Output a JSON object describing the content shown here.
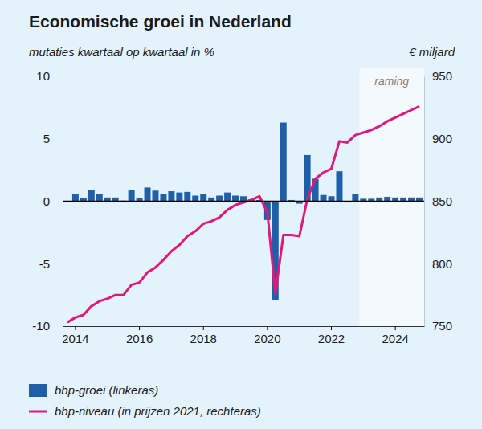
{
  "chart_data": {
    "type": "bar",
    "title": "Economische groei in Nederland",
    "ylabel": "mutaties kwartaal op kwartaal in %",
    "y2label": "€ miljard",
    "categories": [
      null,
      "2014",
      null,
      null,
      null,
      null,
      null,
      null,
      null,
      "2016",
      null,
      null,
      null,
      null,
      null,
      null,
      null,
      "2018",
      null,
      null,
      null,
      null,
      null,
      null,
      null,
      "2020",
      null,
      null,
      null,
      null,
      null,
      null,
      null,
      "2022",
      null,
      null,
      null,
      null,
      null,
      null,
      null,
      "2024",
      null,
      null,
      null
    ],
    "series": [
      {
        "name": "bbp-groei (linkeras)",
        "type": "bar",
        "color": "#1f5fa8",
        "values": [
          null,
          0.55,
          0.25,
          0.9,
          0.55,
          0.3,
          0.3,
          0.05,
          0.9,
          0.25,
          1.1,
          0.85,
          0.55,
          0.8,
          0.7,
          0.75,
          0.45,
          0.6,
          0.3,
          0.45,
          0.7,
          0.45,
          0.4,
          0.15,
          0.1,
          -1.5,
          -7.9,
          6.3,
          0.1,
          -0.2,
          3.7,
          1.8,
          0.5,
          0.4,
          2.4,
          -0.1,
          0.6,
          0.2,
          0.2,
          0.3,
          0.35,
          0.3,
          0.3,
          0.3,
          0.3
        ]
      },
      {
        "name": "bbp-niveau (in prijzen 2021, rechteras)",
        "type": "line",
        "color": "#e2177a",
        "axis": "y2",
        "values": [
          753,
          757,
          759,
          766,
          770,
          772,
          775,
          775,
          783,
          785,
          793,
          797,
          803,
          810,
          815,
          822,
          826,
          832,
          834,
          837,
          843,
          847,
          849,
          851,
          854,
          841,
          776,
          823,
          823,
          822,
          852,
          868,
          873,
          876,
          898,
          897,
          903,
          905,
          907,
          910,
          914,
          917,
          920,
          923,
          926
        ]
      }
    ],
    "forecast": {
      "label": "raming",
      "start": 37
    },
    "ylim": [
      -10,
      10
    ],
    "yticks": [
      -10,
      -5,
      0,
      5,
      10
    ],
    "y2lim": [
      750,
      950
    ],
    "y2ticks": [
      750,
      800,
      850,
      900,
      950
    ],
    "legend": "bottom",
    "grid": false
  }
}
